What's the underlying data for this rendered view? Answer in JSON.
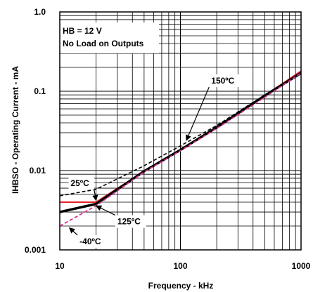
{
  "chart_data": {
    "type": "line",
    "title": "",
    "xlabel": "Frequency - kHz",
    "ylabel": "IHBSO - Operating Current - mA",
    "x_scale": "log",
    "y_scale": "log",
    "xlim": [
      10,
      1000
    ],
    "ylim": [
      0.001,
      1
    ],
    "x_ticks": [
      {
        "value": 10,
        "label": "10"
      },
      {
        "value": 100,
        "label": "100"
      },
      {
        "value": 1000,
        "label": "1000"
      }
    ],
    "y_ticks": [
      {
        "value": 0.001,
        "label": "0.001"
      },
      {
        "value": 0.01,
        "label": "0.01"
      },
      {
        "value": 0.1,
        "label": "0.1"
      },
      {
        "value": 1,
        "label": "1.0"
      }
    ],
    "grid": true,
    "legend_text": [
      "HB = 12 V",
      "No Load on Outputs"
    ],
    "series": [
      {
        "name": "150°C",
        "color": "#000000",
        "style": "dashed",
        "width": 1.6,
        "x": [
          10,
          20,
          50,
          100,
          200,
          500,
          1000
        ],
        "y": [
          0.0048,
          0.0058,
          0.0115,
          0.0205,
          0.037,
          0.09,
          0.176
        ]
      },
      {
        "name": "25°C",
        "color": "#e8202a",
        "style": "solid",
        "width": 2,
        "x": [
          10,
          20,
          50,
          100,
          200,
          500,
          1000
        ],
        "y": [
          0.004,
          0.004,
          0.0098,
          0.0182,
          0.035,
          0.088,
          0.18
        ]
      },
      {
        "name": "125°C",
        "color": "#000000",
        "style": "solid",
        "width": 3.5,
        "x": [
          10,
          20,
          50,
          100,
          200,
          500,
          1000
        ],
        "y": [
          0.003,
          0.0038,
          0.0098,
          0.0182,
          0.035,
          0.088,
          0.17
        ]
      },
      {
        "name": "-40°C",
        "color": "#d6308a",
        "style": "dashed",
        "width": 1.8,
        "x": [
          10,
          20,
          50,
          100,
          200,
          500,
          1000
        ],
        "y": [
          0.002,
          0.0036,
          0.0096,
          0.0178,
          0.034,
          0.084,
          0.17
        ]
      }
    ],
    "annotations": [
      {
        "label": "150ºC",
        "text_x": 180,
        "text_y": 0.125,
        "arrow_x": 112,
        "arrow_y": 0.024
      },
      {
        "label": "25ºC",
        "text_x": 12.3,
        "text_y": 0.0064,
        "arrow_x": 20,
        "arrow_y": 0.0042
      },
      {
        "label": "125ºC",
        "text_x": 30,
        "text_y": 0.0021,
        "arrow_x": 20,
        "arrow_y": 0.0036
      },
      {
        "label": "-40ºC",
        "text_x": 14.6,
        "text_y": 0.00118,
        "arrow_x": 12,
        "arrow_y": 0.0019
      }
    ]
  }
}
